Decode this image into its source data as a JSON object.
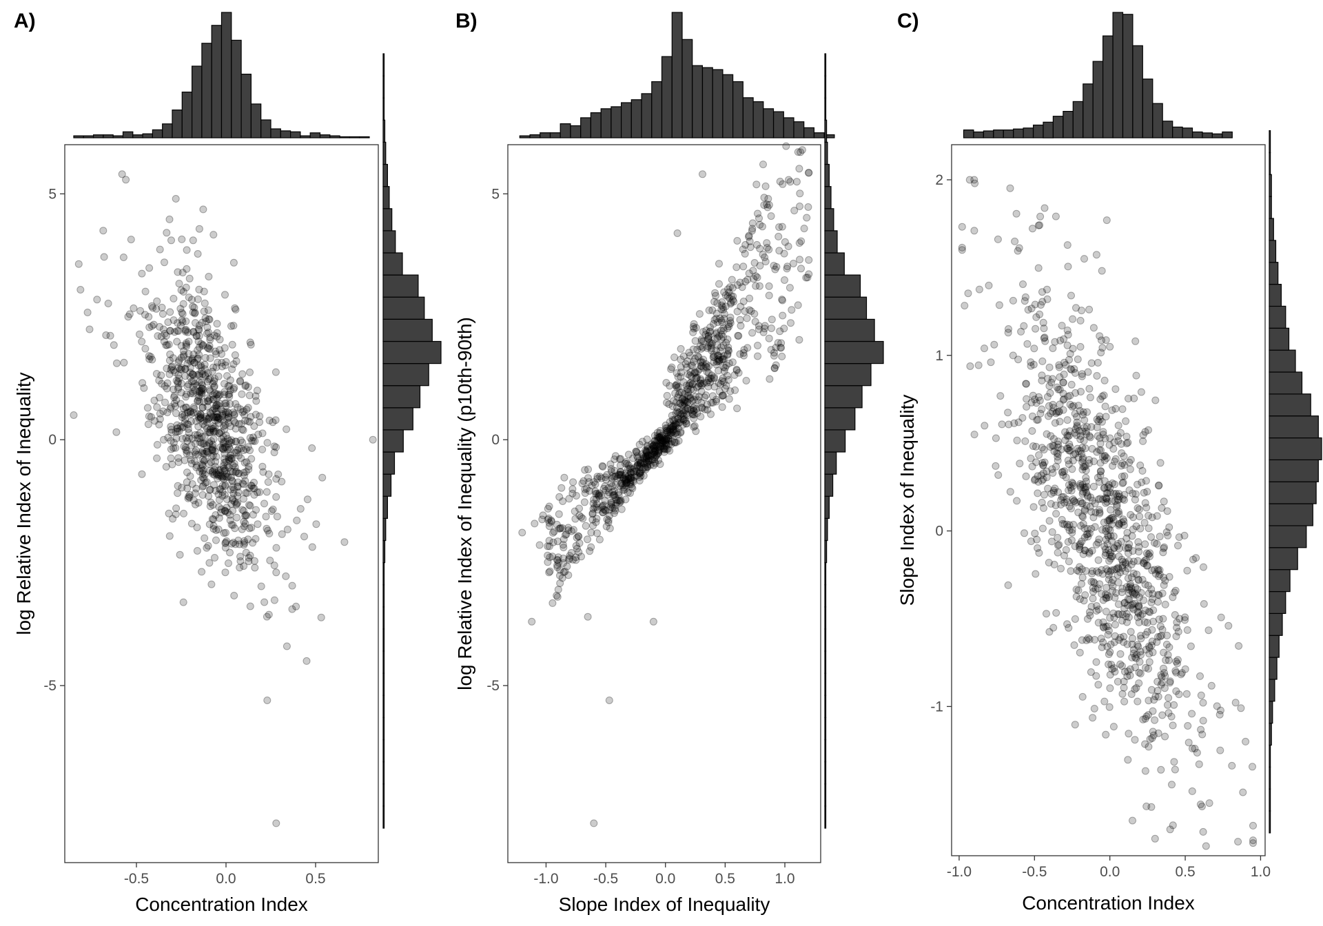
{
  "chart_data": [
    {
      "panel": "A)",
      "type": "scatter",
      "marginal_histograms": true,
      "xlabel": "Concentration Index",
      "ylabel": "log Relative Index of Inequality",
      "xlim": [
        -0.9,
        0.85
      ],
      "ylim": [
        -8.6,
        6.0
      ],
      "xticks": [
        {
          "value": -0.5,
          "label": "-0.5"
        },
        {
          "value": 0.0,
          "label": "0.0"
        },
        {
          "value": 0.5,
          "label": "0.5"
        }
      ],
      "yticks": [
        {
          "value": -5,
          "label": "-5"
        },
        {
          "value": 0,
          "label": "0"
        },
        {
          "value": 5,
          "label": "5"
        }
      ],
      "top_hist": {
        "start": -0.85,
        "width": 0.055,
        "counts": [
          2,
          2,
          3,
          3,
          2,
          6,
          3,
          4,
          8,
          14,
          28,
          46,
          72,
          95,
          113,
          126,
          98,
          64,
          34,
          18,
          9,
          7,
          6,
          2,
          5,
          3,
          2,
          1,
          1,
          1
        ]
      },
      "right_hist": {
        "start": -7.9,
        "width": 0.45,
        "counts": [
          0,
          0,
          0,
          0,
          0,
          0,
          0,
          1,
          1,
          1,
          0,
          1,
          2,
          3,
          5,
          9,
          13,
          23,
          34,
          42,
          52,
          66,
          56,
          47,
          40,
          22,
          14,
          10,
          7,
          5,
          3,
          2,
          1,
          0,
          0
        ]
      },
      "points_model": "cluster near (-0.08, 0.3), negative slope ~ -4.4, sd x 0.18, sd y 1.3; ~900 points",
      "highlight_points": [
        [
          -0.58,
          5.4
        ],
        [
          -0.28,
          4.9
        ],
        [
          -0.72,
          2.85
        ],
        [
          0.82,
          0.0
        ],
        [
          0.28,
          -7.8
        ],
        [
          0.23,
          -5.3
        ],
        [
          0.45,
          -4.5
        ],
        [
          0.34,
          -4.2
        ],
        [
          -0.85,
          0.5
        ]
      ]
    },
    {
      "panel": "B)",
      "type": "scatter",
      "marginal_histograms": true,
      "xlabel": "Slope Index of Inequality",
      "ylabel": "log Relative Index of Inequality (p10th-90th)",
      "xlim": [
        -1.32,
        1.3
      ],
      "ylim": [
        -8.6,
        6.0
      ],
      "xticks": [
        {
          "value": -1.0,
          "label": "-1.0"
        },
        {
          "value": -0.5,
          "label": "-0.5"
        },
        {
          "value": 0.0,
          "label": "0.0"
        },
        {
          "value": 0.5,
          "label": "0.5"
        },
        {
          "value": 1.0,
          "label": "1.0"
        }
      ],
      "yticks": [
        {
          "value": -5,
          "label": "-5"
        },
        {
          "value": 0,
          "label": "0"
        },
        {
          "value": 5,
          "label": "5"
        }
      ],
      "top_hist": {
        "start": -1.22,
        "width": 0.085,
        "counts": [
          2,
          3,
          5,
          5,
          14,
          12,
          20,
          25,
          29,
          31,
          35,
          38,
          44,
          56,
          81,
          125,
          98,
          72,
          70,
          68,
          63,
          56,
          40,
          36,
          29,
          26,
          20,
          16,
          10,
          5,
          3
        ]
      },
      "right_hist": {
        "start": -7.9,
        "width": 0.45,
        "counts": [
          0,
          0,
          0,
          0,
          0,
          0,
          0,
          1,
          1,
          1,
          0,
          1,
          2,
          3,
          5,
          9,
          13,
          23,
          34,
          42,
          52,
          66,
          56,
          47,
          40,
          22,
          14,
          10,
          7,
          5,
          3,
          2,
          1,
          0,
          0
        ]
      },
      "points_model": "fan-shaped: y ~ k*x with k 1..5, dense at origin; ~900 points",
      "highlight_points": [
        [
          0.31,
          5.4
        ],
        [
          0.86,
          4.9
        ],
        [
          0.1,
          4.2
        ],
        [
          0.7,
          4.15
        ],
        [
          -0.6,
          -7.8
        ],
        [
          -0.47,
          -5.3
        ],
        [
          -1.12,
          -3.7
        ],
        [
          -0.65,
          -3.6
        ],
        [
          -0.1,
          -3.7
        ]
      ]
    },
    {
      "panel": "C)",
      "type": "scatter",
      "marginal_histograms": true,
      "xlabel": "Concentration Index",
      "ylabel": "Slope Index of Inequality",
      "xlim": [
        -1.05,
        1.03
      ],
      "ylim": [
        -1.85,
        2.2
      ],
      "xticks": [
        {
          "value": -1.0,
          "label": "-1.0"
        },
        {
          "value": -0.5,
          "label": "-0.5"
        },
        {
          "value": 0.0,
          "label": "0.0"
        },
        {
          "value": 0.5,
          "label": "0.5"
        },
        {
          "value": 1.0,
          "label": "1.0"
        }
      ],
      "yticks": [
        {
          "value": -1,
          "label": "-1"
        },
        {
          "value": 0,
          "label": "0"
        },
        {
          "value": 1,
          "label": "1"
        },
        {
          "value": 2,
          "label": "2"
        }
      ],
      "top_hist": {
        "start": -0.97,
        "width": 0.066,
        "counts": [
          8,
          6,
          7,
          8,
          8,
          9,
          10,
          13,
          16,
          22,
          27,
          37,
          55,
          78,
          104,
          128,
          126,
          94,
          60,
          35,
          17,
          11,
          10,
          6,
          5,
          4,
          6
        ]
      },
      "right_hist": {
        "start": -1.72,
        "width": 0.125,
        "counts": [
          1,
          1,
          1,
          1,
          2,
          3,
          5,
          7,
          9,
          12,
          15,
          19,
          26,
          34,
          40,
          43,
          45,
          48,
          45,
          38,
          30,
          24,
          18,
          15,
          11,
          8,
          6,
          4,
          2,
          2,
          1,
          1
        ]
      },
      "points_model": "cluster near (-0.05, 0.0), negative slope ~ -1.4, sd x 0.3, sd y 0.55; ~1000 points",
      "highlight_points": [
        [
          -0.9,
          2.0
        ],
        [
          -0.93,
          2.0
        ],
        [
          -0.02,
          1.77
        ],
        [
          -0.17,
          1.55
        ],
        [
          0.15,
          -1.65
        ],
        [
          0.4,
          -1.7
        ],
        [
          0.66,
          -1.55
        ],
        [
          0.9,
          -1.2
        ]
      ]
    }
  ]
}
